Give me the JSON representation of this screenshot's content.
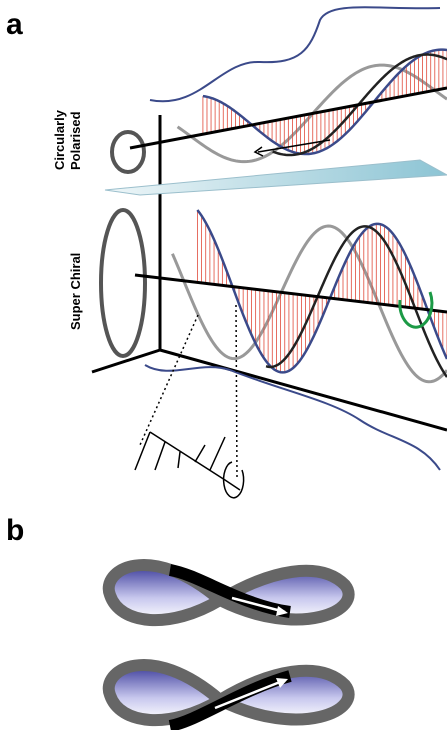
{
  "panel_a": {
    "label": "a",
    "row_1_lines": [
      "Circularly",
      "Polarised"
    ],
    "row_2": "Super Chiral"
  },
  "panel_b": {
    "label": "b"
  }
}
